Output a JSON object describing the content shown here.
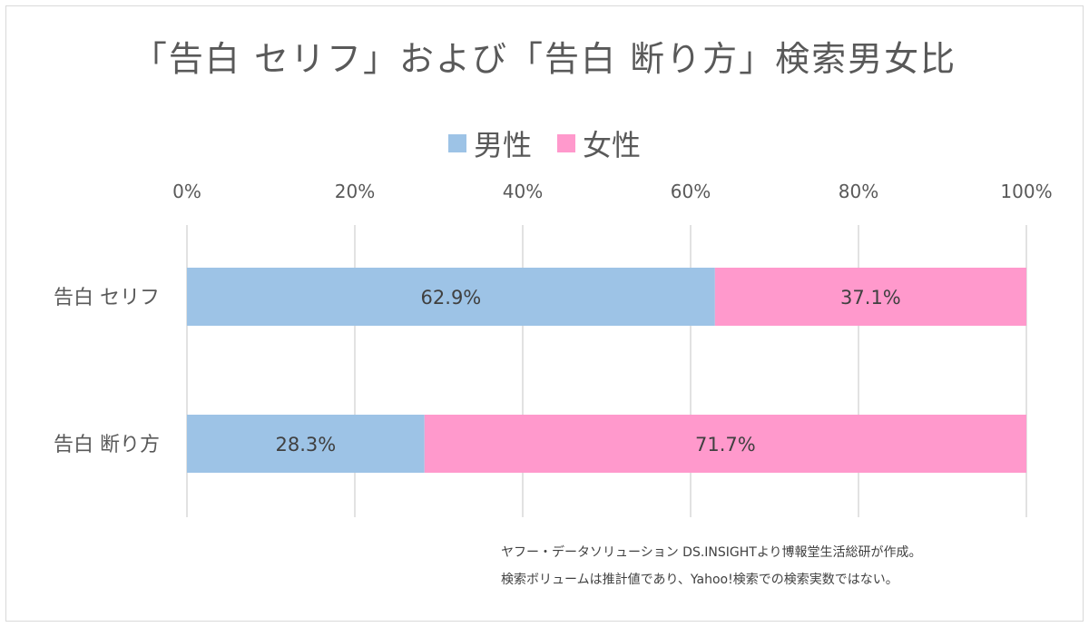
{
  "chart_data": {
    "type": "bar",
    "orientation": "horizontal",
    "stacked": "percent",
    "title": "「告白 セリフ」および「告白 断り方」検索男女比",
    "categories": [
      "告白 セリフ",
      "告白 断り方"
    ],
    "series": [
      {
        "name": "男性",
        "color": "#9dc3e6",
        "values": [
          62.9,
          28.3
        ],
        "labels": [
          "62.9%",
          "28.3%"
        ]
      },
      {
        "name": "女性",
        "color": "#ff99cc",
        "values": [
          37.1,
          71.7
        ],
        "labels": [
          "37.1%",
          "71.7%"
        ]
      }
    ],
    "xlim": [
      0,
      100
    ],
    "xticks": [
      0,
      20,
      40,
      60,
      80,
      100
    ],
    "xtick_labels": [
      "0%",
      "20%",
      "40%",
      "60%",
      "80%",
      "100%"
    ],
    "x_axis_position": "top",
    "grid": true,
    "legend": "top-center"
  },
  "source_note": {
    "line1": "ヤフー・データソリューション DS.INSIGHTより博報堂生活総研が作成。",
    "line2": "検索ボリュームは推計値であり、Yahoo!検索での検索実数ではない。"
  }
}
